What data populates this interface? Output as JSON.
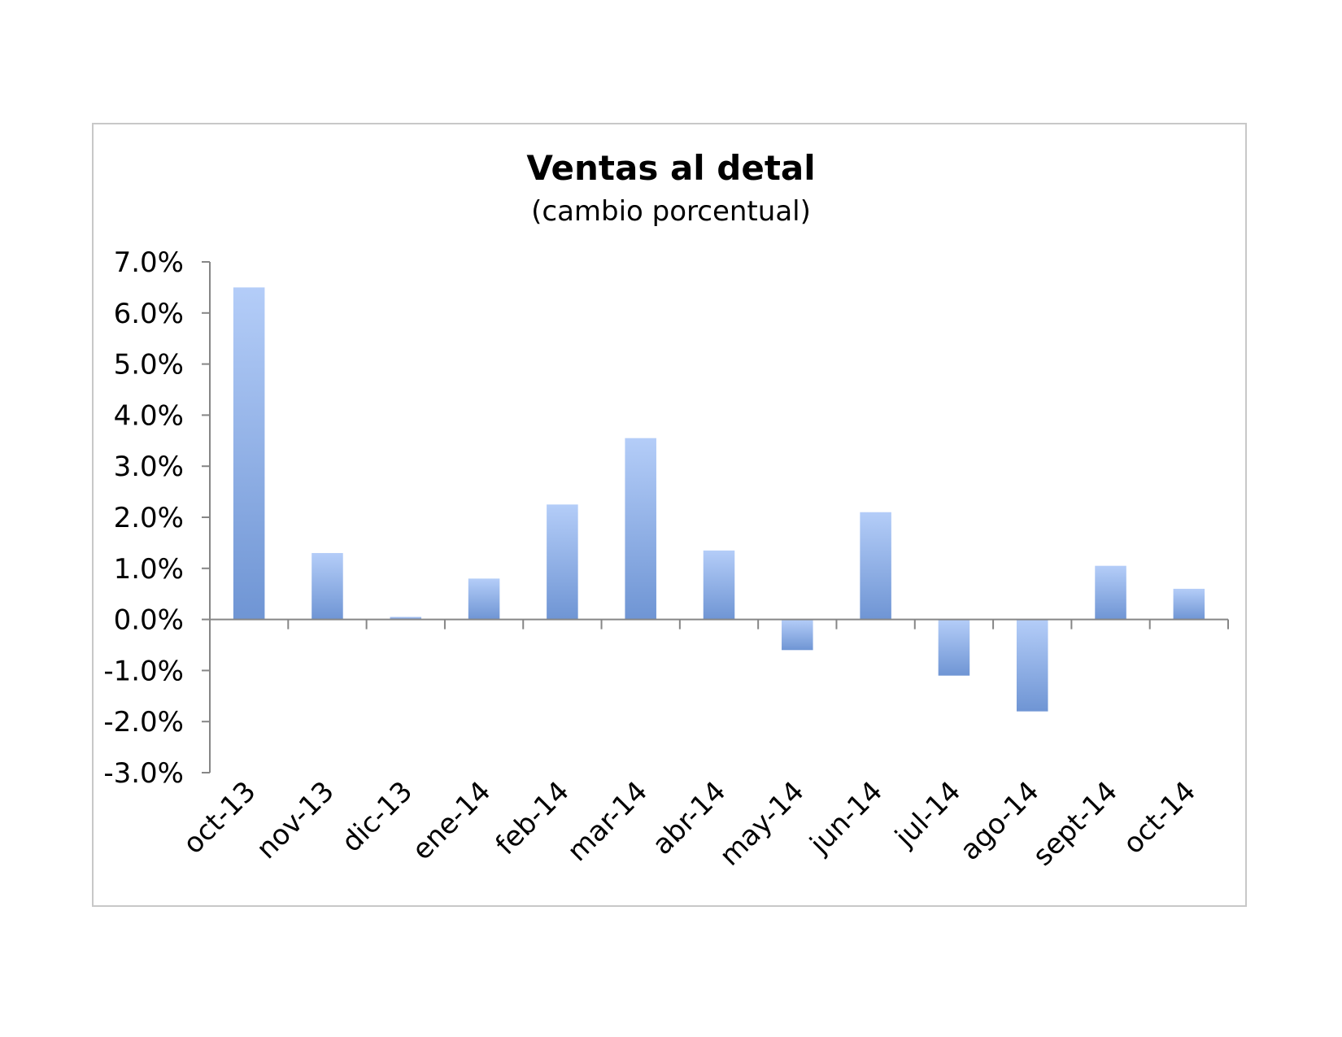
{
  "chart_data": {
    "type": "bar",
    "title": "Ventas al detal",
    "subtitle": "(cambio porcentual)",
    "categories": [
      "oct-13",
      "nov-13",
      "dic-13",
      "ene-14",
      "feb-14",
      "mar-14",
      "abr-14",
      "may-14",
      "jun-14",
      "jul-14",
      "ago-14",
      "sept-14",
      "oct-14"
    ],
    "values": [
      6.5,
      1.3,
      0.05,
      0.8,
      2.25,
      3.55,
      1.35,
      -0.6,
      2.1,
      -1.1,
      -1.8,
      1.05,
      0.6
    ],
    "ylim": [
      -3.0,
      7.0
    ],
    "yticks": [
      7.0,
      6.0,
      5.0,
      4.0,
      3.0,
      2.0,
      1.0,
      0.0,
      -1.0,
      -2.0,
      -3.0
    ],
    "ytick_labels": [
      "7.0%",
      "6.0%",
      "5.0%",
      "4.0%",
      "3.0%",
      "2.0%",
      "1.0%",
      "0.0%",
      "-1.0%",
      "-2.0%",
      "-3.0%"
    ],
    "xlabel": "",
    "ylabel": "",
    "grid": false,
    "legend": "none",
    "colors": {
      "bar_top": "#b4cdf8",
      "bar_bottom": "#6f95d4",
      "axis": "#868686",
      "frame": "#c8c8c8"
    }
  }
}
